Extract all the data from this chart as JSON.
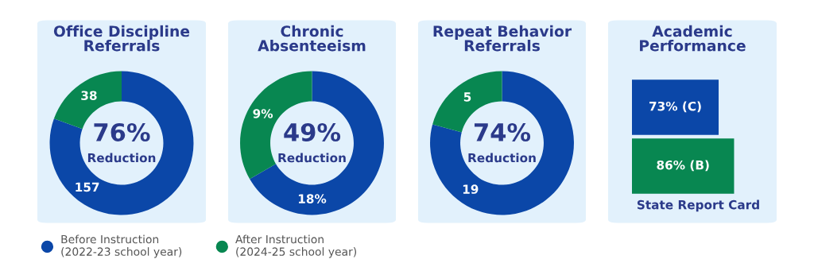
{
  "chart_data": [
    {
      "type": "donut",
      "title": "Office Discipline\nReferrals",
      "categories": [
        "Before Instruction\n(2022-23 school year)",
        "After Instruction\n(2024-25 school year)"
      ],
      "values": [
        157,
        38
      ],
      "colors": [
        "#0b47a8",
        "#088751"
      ],
      "data_labels": true,
      "annotations": [
        "76%",
        "Reduction"
      ],
      "legend": "bottom"
    },
    {
      "type": "donut",
      "title": "Chronic\nAbsenteeism",
      "categories": [
        null,
        null
      ],
      "values": [
        18,
        9
      ],
      "value_labels": [
        "18%",
        "9%"
      ],
      "colors": [
        "#0b47a8",
        "#088751"
      ],
      "annotations": [
        "49%",
        "Reduction"
      ]
    },
    {
      "type": "donut",
      "title": "Repeat Behavior\nReferrals",
      "categories": [
        null,
        null
      ],
      "values": [
        19,
        5
      ],
      "colors": [
        "#0b47a8",
        "#088751"
      ],
      "data_labels": true,
      "annotations": [
        "74%",
        "Reduction"
      ]
    },
    {
      "type": "bar",
      "orientation": "horizontal",
      "title": "Academic\nPerformance",
      "xlabel": "State Report Card",
      "categories": [
        null,
        null
      ],
      "values": [
        73,
        86
      ],
      "colors": [
        "#0b47a8",
        "#088751"
      ],
      "value_labels": [
        "73% (C)",
        "86% (B)"
      ]
    }
  ]
}
